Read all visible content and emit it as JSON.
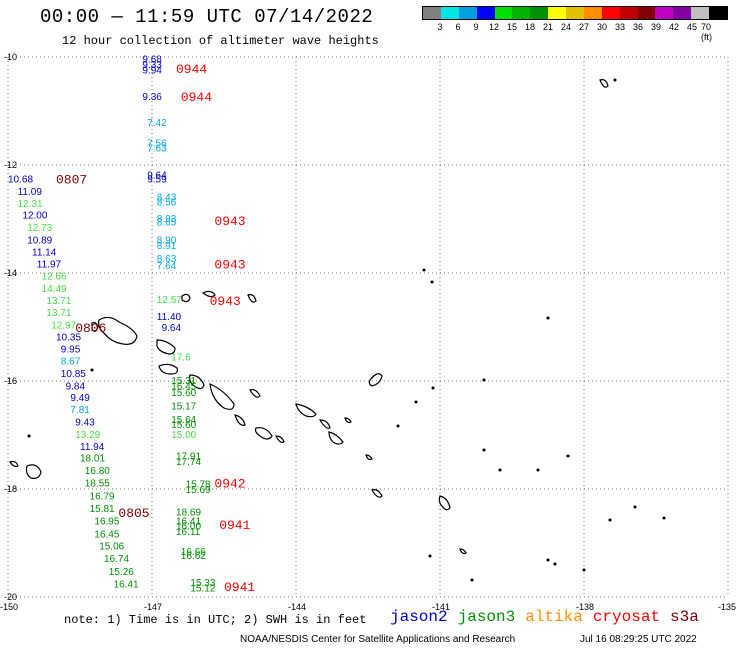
{
  "header": {
    "title": "00:00 — 11:59 UTC 07/14/2022",
    "subtitle": "12 hour collection of altimeter wave heights"
  },
  "colorbar": {
    "colors": [
      "#808080",
      "#00e5e5",
      "#00a0e0",
      "#0000ff",
      "#00e000",
      "#00b400",
      "#009000",
      "#ffff00",
      "#e0c000",
      "#ff9000",
      "#ff0000",
      "#c00000",
      "#800000",
      "#c000c0",
      "#8000a0",
      "#c0c0c0",
      "#000000"
    ],
    "labels": [
      "3",
      "6",
      "9",
      "12",
      "15",
      "18",
      "21",
      "24",
      "27",
      "30",
      "33",
      "36",
      "39",
      "42",
      "45",
      "70 (ft)"
    ]
  },
  "axes": {
    "lon_ticks": [
      "-150",
      "-147",
      "-144",
      "-141",
      "-138",
      "-135"
    ],
    "lat_ticks": [
      "-10",
      "-12",
      "-14",
      "-16",
      "-18",
      "-20"
    ]
  },
  "satellite_colors": {
    "jason2": "#0000c8",
    "jason3": "#009000",
    "jason3_light": "#44dd44",
    "jason2_light": "#00a8e0",
    "cryosat": "#ff0000",
    "s3a": "#800000"
  },
  "chart_data": {
    "type": "scatter",
    "xlabel": "",
    "ylabel": "",
    "xlim": [
      -150,
      -135
    ],
    "ylim": [
      -20,
      -10
    ],
    "times": [
      {
        "t": "0944",
        "lon": -146.5,
        "lat": -10.2,
        "sat": "cryosat"
      },
      {
        "t": "0944",
        "lon": -146.4,
        "lat": -10.72,
        "sat": "cryosat"
      },
      {
        "t": "0807",
        "lon": -149.0,
        "lat": -12.25,
        "sat": "s3a"
      },
      {
        "t": "0943",
        "lon": -145.7,
        "lat": -13.02,
        "sat": "cryosat"
      },
      {
        "t": "0943",
        "lon": -145.7,
        "lat": -13.82,
        "sat": "cryosat"
      },
      {
        "t": "0943",
        "lon": -145.8,
        "lat": -14.5,
        "sat": "cryosat"
      },
      {
        "t": "0806",
        "lon": -148.6,
        "lat": -15.0,
        "sat": "s3a"
      },
      {
        "t": "0805",
        "lon": -147.7,
        "lat": -18.43,
        "sat": "s3a"
      },
      {
        "t": "0942",
        "lon": -145.7,
        "lat": -17.88,
        "sat": "cryosat"
      },
      {
        "t": "0941",
        "lon": -145.6,
        "lat": -18.65,
        "sat": "cryosat"
      },
      {
        "t": "0941",
        "lon": -145.5,
        "lat": -19.8,
        "sat": "cryosat"
      }
    ],
    "values": [
      {
        "v": "9.68",
        "lon": -147.2,
        "lat": -10.03,
        "sat": "jason2"
      },
      {
        "v": "9.33",
        "lon": -147.2,
        "lat": -10.13,
        "sat": "jason2"
      },
      {
        "v": "9.94",
        "lon": -147.2,
        "lat": -10.23,
        "sat": "jason2"
      },
      {
        "v": "9.36",
        "lon": -147.2,
        "lat": -10.72,
        "sat": "jason2"
      },
      {
        "v": "7.42",
        "lon": -147.1,
        "lat": -11.2,
        "sat": "jason2_light"
      },
      {
        "v": "7.56",
        "lon": -147.1,
        "lat": -11.58,
        "sat": "jason2_light"
      },
      {
        "v": "7.63",
        "lon": -147.1,
        "lat": -11.68,
        "sat": "jason2_light"
      },
      {
        "v": "9.64",
        "lon": -147.1,
        "lat": -12.18,
        "sat": "jason2"
      },
      {
        "v": "9.59",
        "lon": -147.1,
        "lat": -12.25,
        "sat": "jason2"
      },
      {
        "v": "8.43",
        "lon": -146.9,
        "lat": -12.58,
        "sat": "jason2_light"
      },
      {
        "v": "8.56",
        "lon": -146.9,
        "lat": -12.68,
        "sat": "jason2_light"
      },
      {
        "v": "8.93",
        "lon": -146.9,
        "lat": -12.98,
        "sat": "jason2_light"
      },
      {
        "v": "8.65",
        "lon": -146.9,
        "lat": -13.05,
        "sat": "jason2_light"
      },
      {
        "v": "8.90",
        "lon": -146.9,
        "lat": -13.38,
        "sat": "jason2_light"
      },
      {
        "v": "8.91",
        "lon": -146.9,
        "lat": -13.48,
        "sat": "jason2_light"
      },
      {
        "v": "8.63",
        "lon": -146.9,
        "lat": -13.72,
        "sat": "jason2_light"
      },
      {
        "v": "7.64",
        "lon": -146.9,
        "lat": -13.85,
        "sat": "jason2_light"
      },
      {
        "v": "12.57",
        "lon": -146.9,
        "lat": -14.48,
        "sat": "jason3_light"
      },
      {
        "v": "11.40",
        "lon": -146.9,
        "lat": -14.8,
        "sat": "jason2"
      },
      {
        "v": "9.64",
        "lon": -146.8,
        "lat": -15.0,
        "sat": "jason2"
      },
      {
        "v": "10.68",
        "lon": -150.0,
        "lat": -12.25,
        "sat": "jason2"
      },
      {
        "v": "11.09",
        "lon": -149.8,
        "lat": -12.48,
        "sat": "jason2"
      },
      {
        "v": "12.31",
        "lon": -149.8,
        "lat": -12.7,
        "sat": "jason3_light"
      },
      {
        "v": "12.00",
        "lon": -149.7,
        "lat": -12.92,
        "sat": "jason2"
      },
      {
        "v": "12.73",
        "lon": -149.6,
        "lat": -13.15,
        "sat": "jason3_light"
      },
      {
        "v": "10.89",
        "lon": -149.6,
        "lat": -13.38,
        "sat": "jason2"
      },
      {
        "v": "11.14",
        "lon": -149.5,
        "lat": -13.6,
        "sat": "jason2"
      },
      {
        "v": "11.97",
        "lon": -149.4,
        "lat": -13.82,
        "sat": "jason2"
      },
      {
        "v": "12.66",
        "lon": -149.3,
        "lat": -14.05,
        "sat": "jason3_light"
      },
      {
        "v": "14.49",
        "lon": -149.3,
        "lat": -14.28,
        "sat": "jason3_light"
      },
      {
        "v": "13.71",
        "lon": -149.2,
        "lat": -14.5,
        "sat": "jason3_light"
      },
      {
        "v": "13.71",
        "lon": -149.2,
        "lat": -14.72,
        "sat": "jason3_light"
      },
      {
        "v": "12.97",
        "lon": -149.1,
        "lat": -14.95,
        "sat": "jason3_light"
      },
      {
        "v": "10.35",
        "lon": -149.0,
        "lat": -15.18,
        "sat": "jason2"
      },
      {
        "v": "9.95",
        "lon": -148.9,
        "lat": -15.4,
        "sat": "jason2"
      },
      {
        "v": "8.67",
        "lon": -148.9,
        "lat": -15.62,
        "sat": "jason2_light"
      },
      {
        "v": "10.85",
        "lon": -148.9,
        "lat": -15.85,
        "sat": "jason2"
      },
      {
        "v": "9.84",
        "lon": -148.8,
        "lat": -16.08,
        "sat": "jason2"
      },
      {
        "v": "9.49",
        "lon": -148.7,
        "lat": -16.3,
        "sat": "jason2"
      },
      {
        "v": "7.81",
        "lon": -148.7,
        "lat": -16.52,
        "sat": "jason2_light"
      },
      {
        "v": "9.43",
        "lon": -148.6,
        "lat": -16.75,
        "sat": "jason2"
      },
      {
        "v": "13.29",
        "lon": -148.6,
        "lat": -16.98,
        "sat": "jason3_light"
      },
      {
        "v": "11.94",
        "lon": -148.5,
        "lat": -17.2,
        "sat": "jason2"
      },
      {
        "v": "18.01",
        "lon": -148.5,
        "lat": -17.42,
        "sat": "jason3"
      },
      {
        "v": "16.80",
        "lon": -148.4,
        "lat": -17.65,
        "sat": "jason3"
      },
      {
        "v": "18.55",
        "lon": -148.4,
        "lat": -17.88,
        "sat": "jason3"
      },
      {
        "v": "16.79",
        "lon": -148.3,
        "lat": -18.12,
        "sat": "jason3"
      },
      {
        "v": "15.81",
        "lon": -148.3,
        "lat": -18.35,
        "sat": "jason3"
      },
      {
        "v": "16.95",
        "lon": -148.2,
        "lat": -18.58,
        "sat": "jason3"
      },
      {
        "v": "16.45",
        "lon": -148.2,
        "lat": -18.82,
        "sat": "jason3"
      },
      {
        "v": "15.06",
        "lon": -148.1,
        "lat": -19.05,
        "sat": "jason3"
      },
      {
        "v": "16.74",
        "lon": -148.0,
        "lat": -19.28,
        "sat": "jason3"
      },
      {
        "v": "15.26",
        "lon": -147.9,
        "lat": -19.52,
        "sat": "jason3"
      },
      {
        "v": "16.41",
        "lon": -147.8,
        "lat": -19.75,
        "sat": "jason3"
      },
      {
        "v": "17.6",
        "lon": -146.6,
        "lat": -15.55,
        "sat": "jason3_light"
      },
      {
        "v": "15.31",
        "lon": -146.6,
        "lat": -15.98,
        "sat": "jason3"
      },
      {
        "v": "16.45",
        "lon": -146.6,
        "lat": -16.08,
        "sat": "jason3"
      },
      {
        "v": "15.60",
        "lon": -146.6,
        "lat": -16.2,
        "sat": "jason3"
      },
      {
        "v": "15.17",
        "lon": -146.6,
        "lat": -16.45,
        "sat": "jason3"
      },
      {
        "v": "15.64",
        "lon": -146.6,
        "lat": -16.7,
        "sat": "jason3"
      },
      {
        "v": "15.60",
        "lon": -146.6,
        "lat": -16.8,
        "sat": "jason3"
      },
      {
        "v": "15.00",
        "lon": -146.6,
        "lat": -16.98,
        "sat": "jason3_light"
      },
      {
        "v": "17.91",
        "lon": -146.5,
        "lat": -17.38,
        "sat": "jason3"
      },
      {
        "v": "17.74",
        "lon": -146.5,
        "lat": -17.48,
        "sat": "jason3"
      },
      {
        "v": "15.78",
        "lon": -146.3,
        "lat": -17.9,
        "sat": "jason3"
      },
      {
        "v": "15.69",
        "lon": -146.3,
        "lat": -18.0,
        "sat": "jason3"
      },
      {
        "v": "18.69",
        "lon": -146.5,
        "lat": -18.42,
        "sat": "jason3"
      },
      {
        "v": "16.41",
        "lon": -146.5,
        "lat": -18.58,
        "sat": "jason3"
      },
      {
        "v": "16.00",
        "lon": -146.5,
        "lat": -18.68,
        "sat": "jason3"
      },
      {
        "v": "16.11",
        "lon": -146.5,
        "lat": -18.78,
        "sat": "jason3"
      },
      {
        "v": "16.66",
        "lon": -146.4,
        "lat": -19.15,
        "sat": "jason3"
      },
      {
        "v": "16.62",
        "lon": -146.4,
        "lat": -19.22,
        "sat": "jason3"
      },
      {
        "v": "15.33",
        "lon": -146.2,
        "lat": -19.72,
        "sat": "jason3"
      },
      {
        "v": "15.12",
        "lon": -146.2,
        "lat": -19.82,
        "sat": "jason3"
      }
    ]
  },
  "footer": {
    "note": "note: 1) Time is in UTC; 2) SWH is in feet",
    "legend": [
      {
        "name": "jason2",
        "color": "#0000c8"
      },
      {
        "name": "jason3",
        "color": "#009000"
      },
      {
        "name": "altika",
        "color": "#ff9000"
      },
      {
        "name": "cryosat",
        "color": "#ff0000"
      },
      {
        "name": "s3a",
        "color": "#800000"
      }
    ],
    "credit": "NOAA/NESDIS Center for Satellite Applications and Research",
    "timestamp": "Jul 16 08:29:25 UTC 2022"
  }
}
